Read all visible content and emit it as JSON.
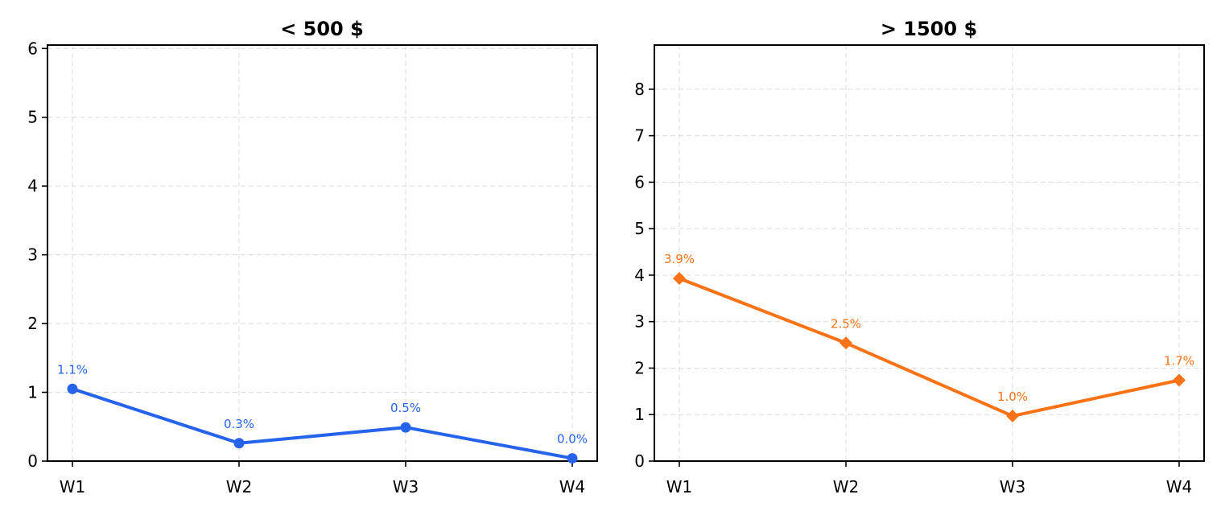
{
  "chart_data": [
    {
      "type": "line",
      "title": "< 500 $",
      "categories": [
        "W1",
        "W2",
        "W3",
        "W4"
      ],
      "values": [
        1.05,
        0.26,
        0.49,
        0.04
      ],
      "data_labels": [
        "1.1%",
        "0.3%",
        "0.5%",
        "0.0%"
      ],
      "ylim": [
        0,
        6.05
      ],
      "yticks": [
        0,
        1,
        2,
        3,
        4,
        5,
        6
      ],
      "marker": "circle",
      "color": "#2563eb",
      "grid": true,
      "xlabel": "",
      "ylabel": ""
    },
    {
      "type": "line",
      "title": "> 1500 $",
      "categories": [
        "W1",
        "W2",
        "W3",
        "W4"
      ],
      "values": [
        3.93,
        2.54,
        0.97,
        1.74
      ],
      "data_labels": [
        "3.9%",
        "2.5%",
        "1.0%",
        "1.7%"
      ],
      "ylim": [
        0,
        8.95
      ],
      "yticks": [
        0,
        1,
        2,
        3,
        4,
        5,
        6,
        7,
        8
      ],
      "marker": "diamond",
      "color": "#f97316",
      "grid": true,
      "xlabel": "",
      "ylabel": ""
    }
  ]
}
